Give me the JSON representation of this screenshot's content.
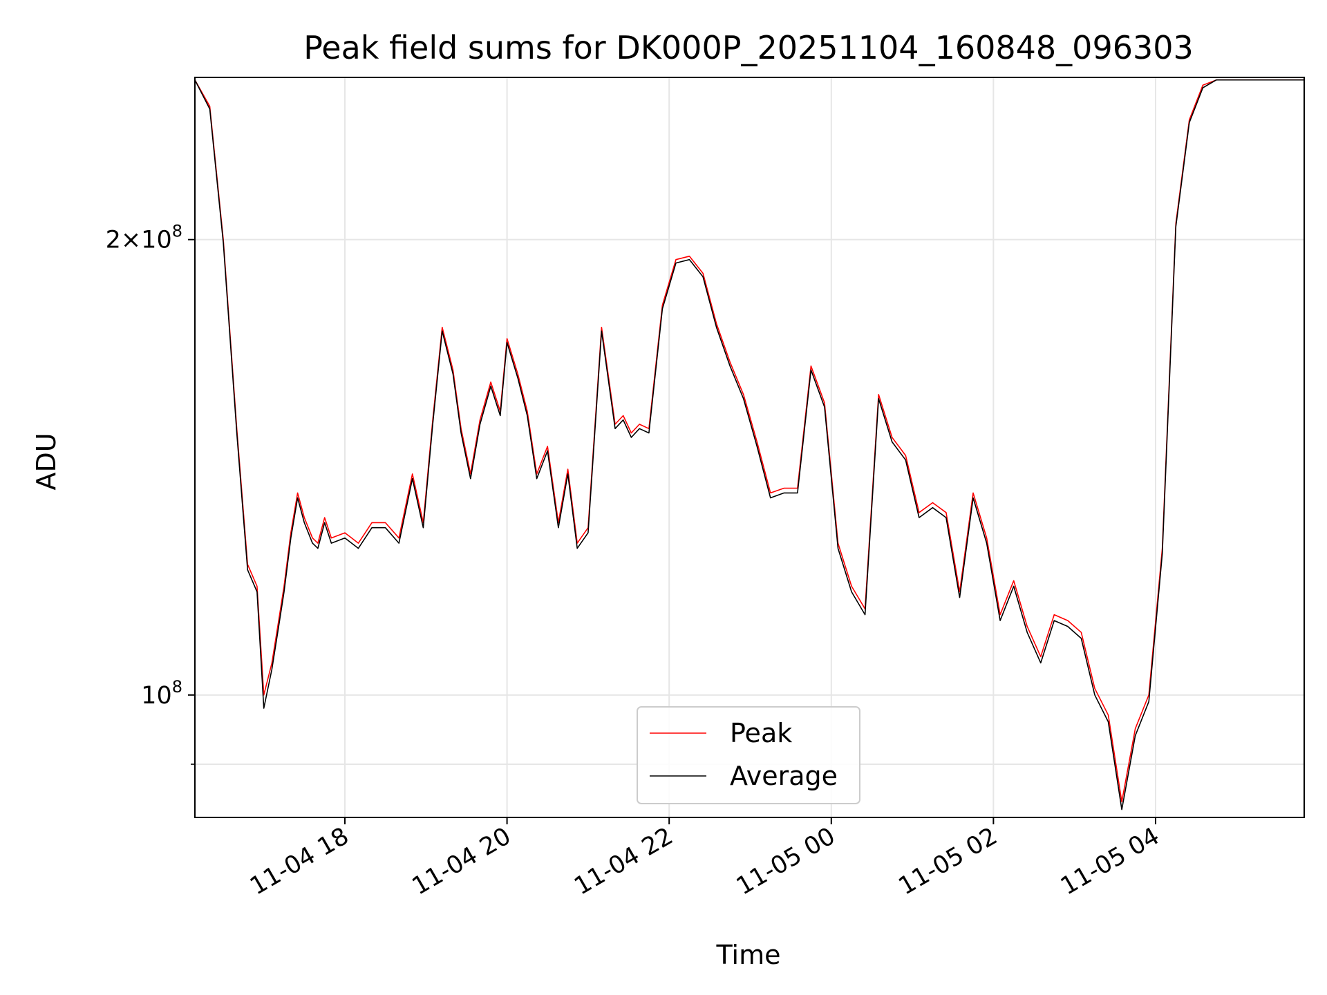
{
  "chart_data": {
    "type": "line",
    "title": "Peak field sums for DK000P_20251104_160848_096303",
    "xlabel": "Time",
    "ylabel": "ADU",
    "y_scale": "log",
    "ylim": [
      83000000,
      256000000
    ],
    "xlim": [
      "2025-11-04 16:09",
      "2025-11-05 05:50"
    ],
    "grid": true,
    "legend_position": "bottom-center",
    "x_ticks": [
      {
        "value": "2025-11-04 18:00",
        "label": "11-04 18"
      },
      {
        "value": "2025-11-04 20:00",
        "label": "11-04 20"
      },
      {
        "value": "2025-11-04 22:00",
        "label": "11-04 22"
      },
      {
        "value": "2025-11-05 00:00",
        "label": "11-05 00"
      },
      {
        "value": "2025-11-05 02:00",
        "label": "11-05 02"
      },
      {
        "value": "2025-11-05 04:00",
        "label": "11-05 04"
      }
    ],
    "y_ticks": [
      {
        "value": 200000000,
        "mantissa": "2",
        "times": "×",
        "base": "10",
        "exp": "8"
      },
      {
        "value": 100000000,
        "mantissa": "",
        "times": "",
        "base": "10",
        "exp": "8"
      }
    ],
    "y_minor_ticks": [
      90000000
    ],
    "series": [
      {
        "name": "Peak",
        "color": "#ff0000",
        "x": [
          "2025-11-04 16:09",
          "2025-11-04 16:20",
          "2025-11-04 16:30",
          "2025-11-04 16:40",
          "2025-11-04 16:48",
          "2025-11-04 16:55",
          "2025-11-04 17:00",
          "2025-11-04 17:06",
          "2025-11-04 17:11",
          "2025-11-04 17:15",
          "2025-11-04 17:20",
          "2025-11-04 17:25",
          "2025-11-04 17:30",
          "2025-11-04 17:36",
          "2025-11-04 17:40",
          "2025-11-04 17:45",
          "2025-11-04 17:50",
          "2025-11-04 18:00",
          "2025-11-04 18:10",
          "2025-11-04 18:20",
          "2025-11-04 18:30",
          "2025-11-04 18:40",
          "2025-11-04 18:50",
          "2025-11-04 18:58",
          "2025-11-04 19:05",
          "2025-11-04 19:12",
          "2025-11-04 19:20",
          "2025-11-04 19:26",
          "2025-11-04 19:33",
          "2025-11-04 19:40",
          "2025-11-04 19:48",
          "2025-11-04 19:55",
          "2025-11-04 20:00",
          "2025-11-04 20:08",
          "2025-11-04 20:15",
          "2025-11-04 20:22",
          "2025-11-04 20:30",
          "2025-11-04 20:38",
          "2025-11-04 20:45",
          "2025-11-04 20:52",
          "2025-11-04 21:00",
          "2025-11-04 21:10",
          "2025-11-04 21:20",
          "2025-11-04 21:26",
          "2025-11-04 21:32",
          "2025-11-04 21:38",
          "2025-11-04 21:45",
          "2025-11-04 21:55",
          "2025-11-04 22:05",
          "2025-11-04 22:15",
          "2025-11-04 22:25",
          "2025-11-04 22:35",
          "2025-11-04 22:45",
          "2025-11-04 22:55",
          "2025-11-04 23:05",
          "2025-11-04 23:15",
          "2025-11-04 23:25",
          "2025-11-04 23:35",
          "2025-11-04 23:45",
          "2025-11-04 23:55",
          "2025-11-05 00:05",
          "2025-11-05 00:15",
          "2025-11-05 00:25",
          "2025-11-05 00:35",
          "2025-11-05 00:45",
          "2025-11-05 00:55",
          "2025-11-05 01:05",
          "2025-11-05 01:15",
          "2025-11-05 01:25",
          "2025-11-05 01:35",
          "2025-11-05 01:45",
          "2025-11-05 01:55",
          "2025-11-05 02:05",
          "2025-11-05 02:15",
          "2025-11-05 02:25",
          "2025-11-05 02:35",
          "2025-11-05 02:45",
          "2025-11-05 02:55",
          "2025-11-05 03:05",
          "2025-11-05 03:15",
          "2025-11-05 03:25",
          "2025-11-05 03:35",
          "2025-11-05 03:45",
          "2025-11-05 03:55",
          "2025-11-05 04:05",
          "2025-11-05 04:15",
          "2025-11-05 04:25",
          "2025-11-05 04:35",
          "2025-11-05 04:45",
          "2025-11-05 04:55",
          "2025-11-05 05:05",
          "2025-11-05 05:15",
          "2025-11-05 05:25",
          "2025-11-05 05:35",
          "2025-11-05 05:45",
          "2025-11-05 05:50"
        ],
        "values": [
          255000000,
          245000000,
          200000000,
          150000000,
          122000000,
          118000000,
          100000000,
          105000000,
          112000000,
          118000000,
          128000000,
          136000000,
          131000000,
          127000000,
          126000000,
          131000000,
          127000000,
          128000000,
          126000000,
          130000000,
          130000000,
          127000000,
          140000000,
          130000000,
          152000000,
          175000000,
          164000000,
          150000000,
          140000000,
          152000000,
          161000000,
          154000000,
          172000000,
          163000000,
          154000000,
          140000000,
          146000000,
          130000000,
          141000000,
          126000000,
          129000000,
          175000000,
          151000000,
          153000000,
          149000000,
          151000000,
          150000000,
          181000000,
          194000000,
          195000000,
          190000000,
          176000000,
          166000000,
          158000000,
          147000000,
          136000000,
          137000000,
          137000000,
          165000000,
          156000000,
          126000000,
          118000000,
          114000000,
          158000000,
          148000000,
          144000000,
          132000000,
          134000000,
          132000000,
          117000000,
          136000000,
          127000000,
          113000000,
          119000000,
          111000000,
          106000000,
          113000000,
          112000000,
          110000000,
          101000000,
          97000000,
          85000000,
          95000000,
          100000000,
          125000000,
          205000000,
          240000000,
          253000000,
          255000000,
          255000000,
          255000000,
          255000000,
          255000000,
          255000000,
          255000000,
          255000000
        ]
      },
      {
        "name": "Average",
        "color": "#000000",
        "x": [
          "2025-11-04 16:09",
          "2025-11-04 16:20",
          "2025-11-04 16:30",
          "2025-11-04 16:40",
          "2025-11-04 16:48",
          "2025-11-04 16:55",
          "2025-11-04 17:00",
          "2025-11-04 17:06",
          "2025-11-04 17:11",
          "2025-11-04 17:15",
          "2025-11-04 17:20",
          "2025-11-04 17:25",
          "2025-11-04 17:30",
          "2025-11-04 17:36",
          "2025-11-04 17:40",
          "2025-11-04 17:45",
          "2025-11-04 17:50",
          "2025-11-04 18:00",
          "2025-11-04 18:10",
          "2025-11-04 18:20",
          "2025-11-04 18:30",
          "2025-11-04 18:40",
          "2025-11-04 18:50",
          "2025-11-04 18:58",
          "2025-11-04 19:05",
          "2025-11-04 19:12",
          "2025-11-04 19:20",
          "2025-11-04 19:26",
          "2025-11-04 19:33",
          "2025-11-04 19:40",
          "2025-11-04 19:48",
          "2025-11-04 19:55",
          "2025-11-04 20:00",
          "2025-11-04 20:08",
          "2025-11-04 20:15",
          "2025-11-04 20:22",
          "2025-11-04 20:30",
          "2025-11-04 20:38",
          "2025-11-04 20:45",
          "2025-11-04 20:52",
          "2025-11-04 21:00",
          "2025-11-04 21:10",
          "2025-11-04 21:20",
          "2025-11-04 21:26",
          "2025-11-04 21:32",
          "2025-11-04 21:38",
          "2025-11-04 21:45",
          "2025-11-04 21:55",
          "2025-11-04 22:05",
          "2025-11-04 22:15",
          "2025-11-04 22:25",
          "2025-11-04 22:35",
          "2025-11-04 22:45",
          "2025-11-04 22:55",
          "2025-11-04 23:05",
          "2025-11-04 23:15",
          "2025-11-04 23:25",
          "2025-11-04 23:35",
          "2025-11-04 23:45",
          "2025-11-04 23:55",
          "2025-11-05 00:05",
          "2025-11-05 00:15",
          "2025-11-05 00:25",
          "2025-11-05 00:35",
          "2025-11-05 00:45",
          "2025-11-05 00:55",
          "2025-11-05 01:05",
          "2025-11-05 01:15",
          "2025-11-05 01:25",
          "2025-11-05 01:35",
          "2025-11-05 01:45",
          "2025-11-05 01:55",
          "2025-11-05 02:05",
          "2025-11-05 02:15",
          "2025-11-05 02:25",
          "2025-11-05 02:35",
          "2025-11-05 02:45",
          "2025-11-05 02:55",
          "2025-11-05 03:05",
          "2025-11-05 03:15",
          "2025-11-05 03:25",
          "2025-11-05 03:35",
          "2025-11-05 03:45",
          "2025-11-05 03:55",
          "2025-11-05 04:05",
          "2025-11-05 04:15",
          "2025-11-05 04:25",
          "2025-11-05 04:35",
          "2025-11-05 04:45",
          "2025-11-05 04:55",
          "2025-11-05 05:05",
          "2025-11-05 05:15",
          "2025-11-05 05:25",
          "2025-11-05 05:35",
          "2025-11-05 05:45",
          "2025-11-05 05:50"
        ],
        "values": [
          255000000,
          244000000,
          199000000,
          149000000,
          121000000,
          117000000,
          98000000,
          104000000,
          111000000,
          117000000,
          127000000,
          135000000,
          130000000,
          126000000,
          125000000,
          130000000,
          126000000,
          127000000,
          125000000,
          129000000,
          129000000,
          126000000,
          139000000,
          129000000,
          151000000,
          174000000,
          163000000,
          149000000,
          139000000,
          151000000,
          160000000,
          153000000,
          171000000,
          162000000,
          153000000,
          139000000,
          145000000,
          129000000,
          140000000,
          125000000,
          128000000,
          174000000,
          150000000,
          152000000,
          148000000,
          150000000,
          149000000,
          180000000,
          193000000,
          194000000,
          189000000,
          175000000,
          165000000,
          157000000,
          146000000,
          135000000,
          136000000,
          136000000,
          164000000,
          155000000,
          125000000,
          117000000,
          113000000,
          157000000,
          147000000,
          143000000,
          131000000,
          133000000,
          131000000,
          116000000,
          135000000,
          126000000,
          112000000,
          118000000,
          110000000,
          105000000,
          112000000,
          111000000,
          109000000,
          100000000,
          96000000,
          84000000,
          94000000,
          99000000,
          124000000,
          204000000,
          239000000,
          252000000,
          255000000,
          255000000,
          255000000,
          255000000,
          255000000,
          255000000,
          255000000,
          255000000
        ]
      }
    ]
  }
}
